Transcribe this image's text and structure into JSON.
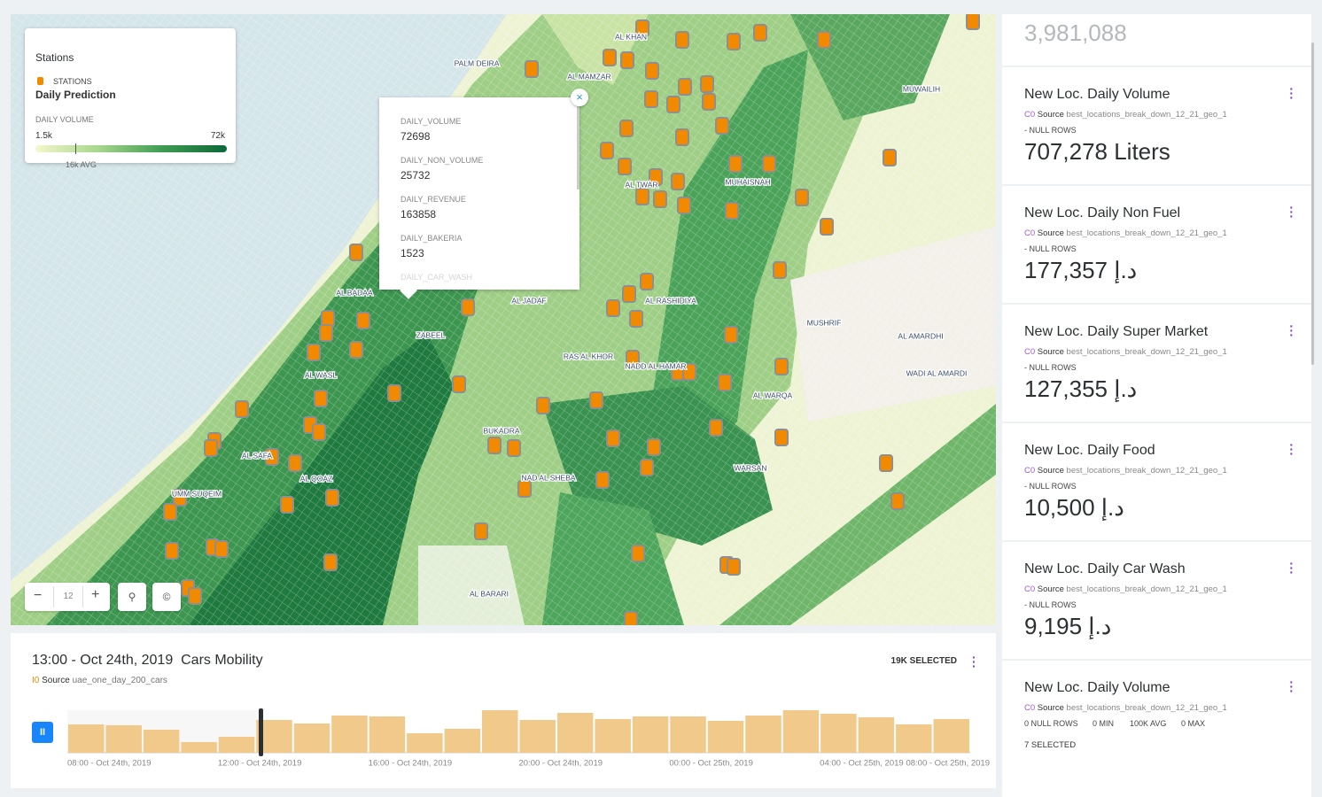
{
  "map": {
    "legend": {
      "title": "Stations",
      "layer_label": "STATIONS",
      "layer_name": "Daily Prediction",
      "variable": "DAILY VOLUME",
      "min_label": "1.5k",
      "max_label": "72k",
      "avg_label": "16k AVG"
    },
    "places": [
      "AL KHAN",
      "PALM DEIRA",
      "AL MAMZAR",
      "MUWAILIH",
      "AL TWAR",
      "MUHAISNAH",
      "AL BADAA",
      "AL JADAF",
      "AL RASHIDIYA",
      "MUSHRIF",
      "ZABEEL",
      "AL AMARDHI",
      "RAS AL KHOR",
      "NADD AL HAMAR",
      "WADI AL AMARDI",
      "AL WASL",
      "AL WARQA",
      "BUKADRA",
      "AL SAFA",
      "WARSAN",
      "NAD AL SHEBA",
      "AL QOAZ",
      "UMM SUQEIM",
      "AL BARARI"
    ],
    "zoom": 12,
    "popup": {
      "fields": [
        {
          "name": "DAILY_VOLUME",
          "value": 72698
        },
        {
          "name": "DAILY_NON_VOLUME",
          "value": 25732
        },
        {
          "name": "DAILY_REVENUE",
          "value": 163858
        },
        {
          "name": "DAILY_BAKERIA",
          "value": 1523
        },
        {
          "name": "DAILY_CAR_WASH"
        }
      ]
    }
  },
  "timeseries": {
    "time": "13:00 - Oct 24th, 2019",
    "title": "Cars Mobility",
    "source_id": "I0",
    "source_label": "Source",
    "source": "uae_one_day_200_cars",
    "selected": "19K SELECTED",
    "values": [
      32,
      31,
      26,
      12,
      18,
      37,
      33,
      42,
      41,
      22,
      27,
      48,
      37,
      45,
      38,
      41,
      41,
      36,
      42,
      48,
      44,
      40,
      32,
      38
    ],
    "x_labels": [
      "08:00 - Oct 24th, 2019",
      "12:00 - Oct 24th, 2019",
      "16:00 - Oct 24th, 2019",
      "20:00 - Oct 24th, 2019",
      "00:00 - Oct 25th, 2019",
      "04:00 - Oct 25th, 2019",
      "08:00 - Oct 25th, 2019"
    ]
  },
  "widgets": {
    "top_value": "3,981,088",
    "items": [
      {
        "title": "New Loc. Daily Volume",
        "source_id": "C0",
        "source_label": "Source",
        "source": "best_locations_break_down_12_21_geo_1",
        "nulls": "- NULL ROWS",
        "value": "707,278 Liters"
      },
      {
        "title": "New Loc. Daily Non Fuel",
        "source_id": "C0",
        "source_label": "Source",
        "source": "best_locations_break_down_12_21_geo_1",
        "nulls": "- NULL ROWS",
        "value": "177,357 د.إ"
      },
      {
        "title": "New Loc. Daily Super Market",
        "source_id": "C0",
        "source_label": "Source",
        "source": "best_locations_break_down_12_21_geo_1",
        "nulls": "- NULL ROWS",
        "value": "127,355 د.إ"
      },
      {
        "title": "New Loc. Daily Food",
        "source_id": "C0",
        "source_label": "Source",
        "source": "best_locations_break_down_12_21_geo_1",
        "nulls": "- NULL ROWS",
        "value": "10,500 د.إ"
      },
      {
        "title": "New Loc. Daily Car Wash",
        "source_id": "C0",
        "source_label": "Source",
        "source": "best_locations_break_down_12_21_geo_1",
        "nulls": "- NULL ROWS",
        "value": "9,195 د.إ"
      },
      {
        "title": "New Loc. Daily Volume",
        "source_id": "C0",
        "source_label": "Source",
        "source": "best_locations_break_down_12_21_geo_1",
        "stats": [
          "0 NULL ROWS",
          "0 MIN",
          "100K AVG",
          "0 MAX"
        ],
        "selected": "7 SELECTED"
      }
    ]
  }
}
